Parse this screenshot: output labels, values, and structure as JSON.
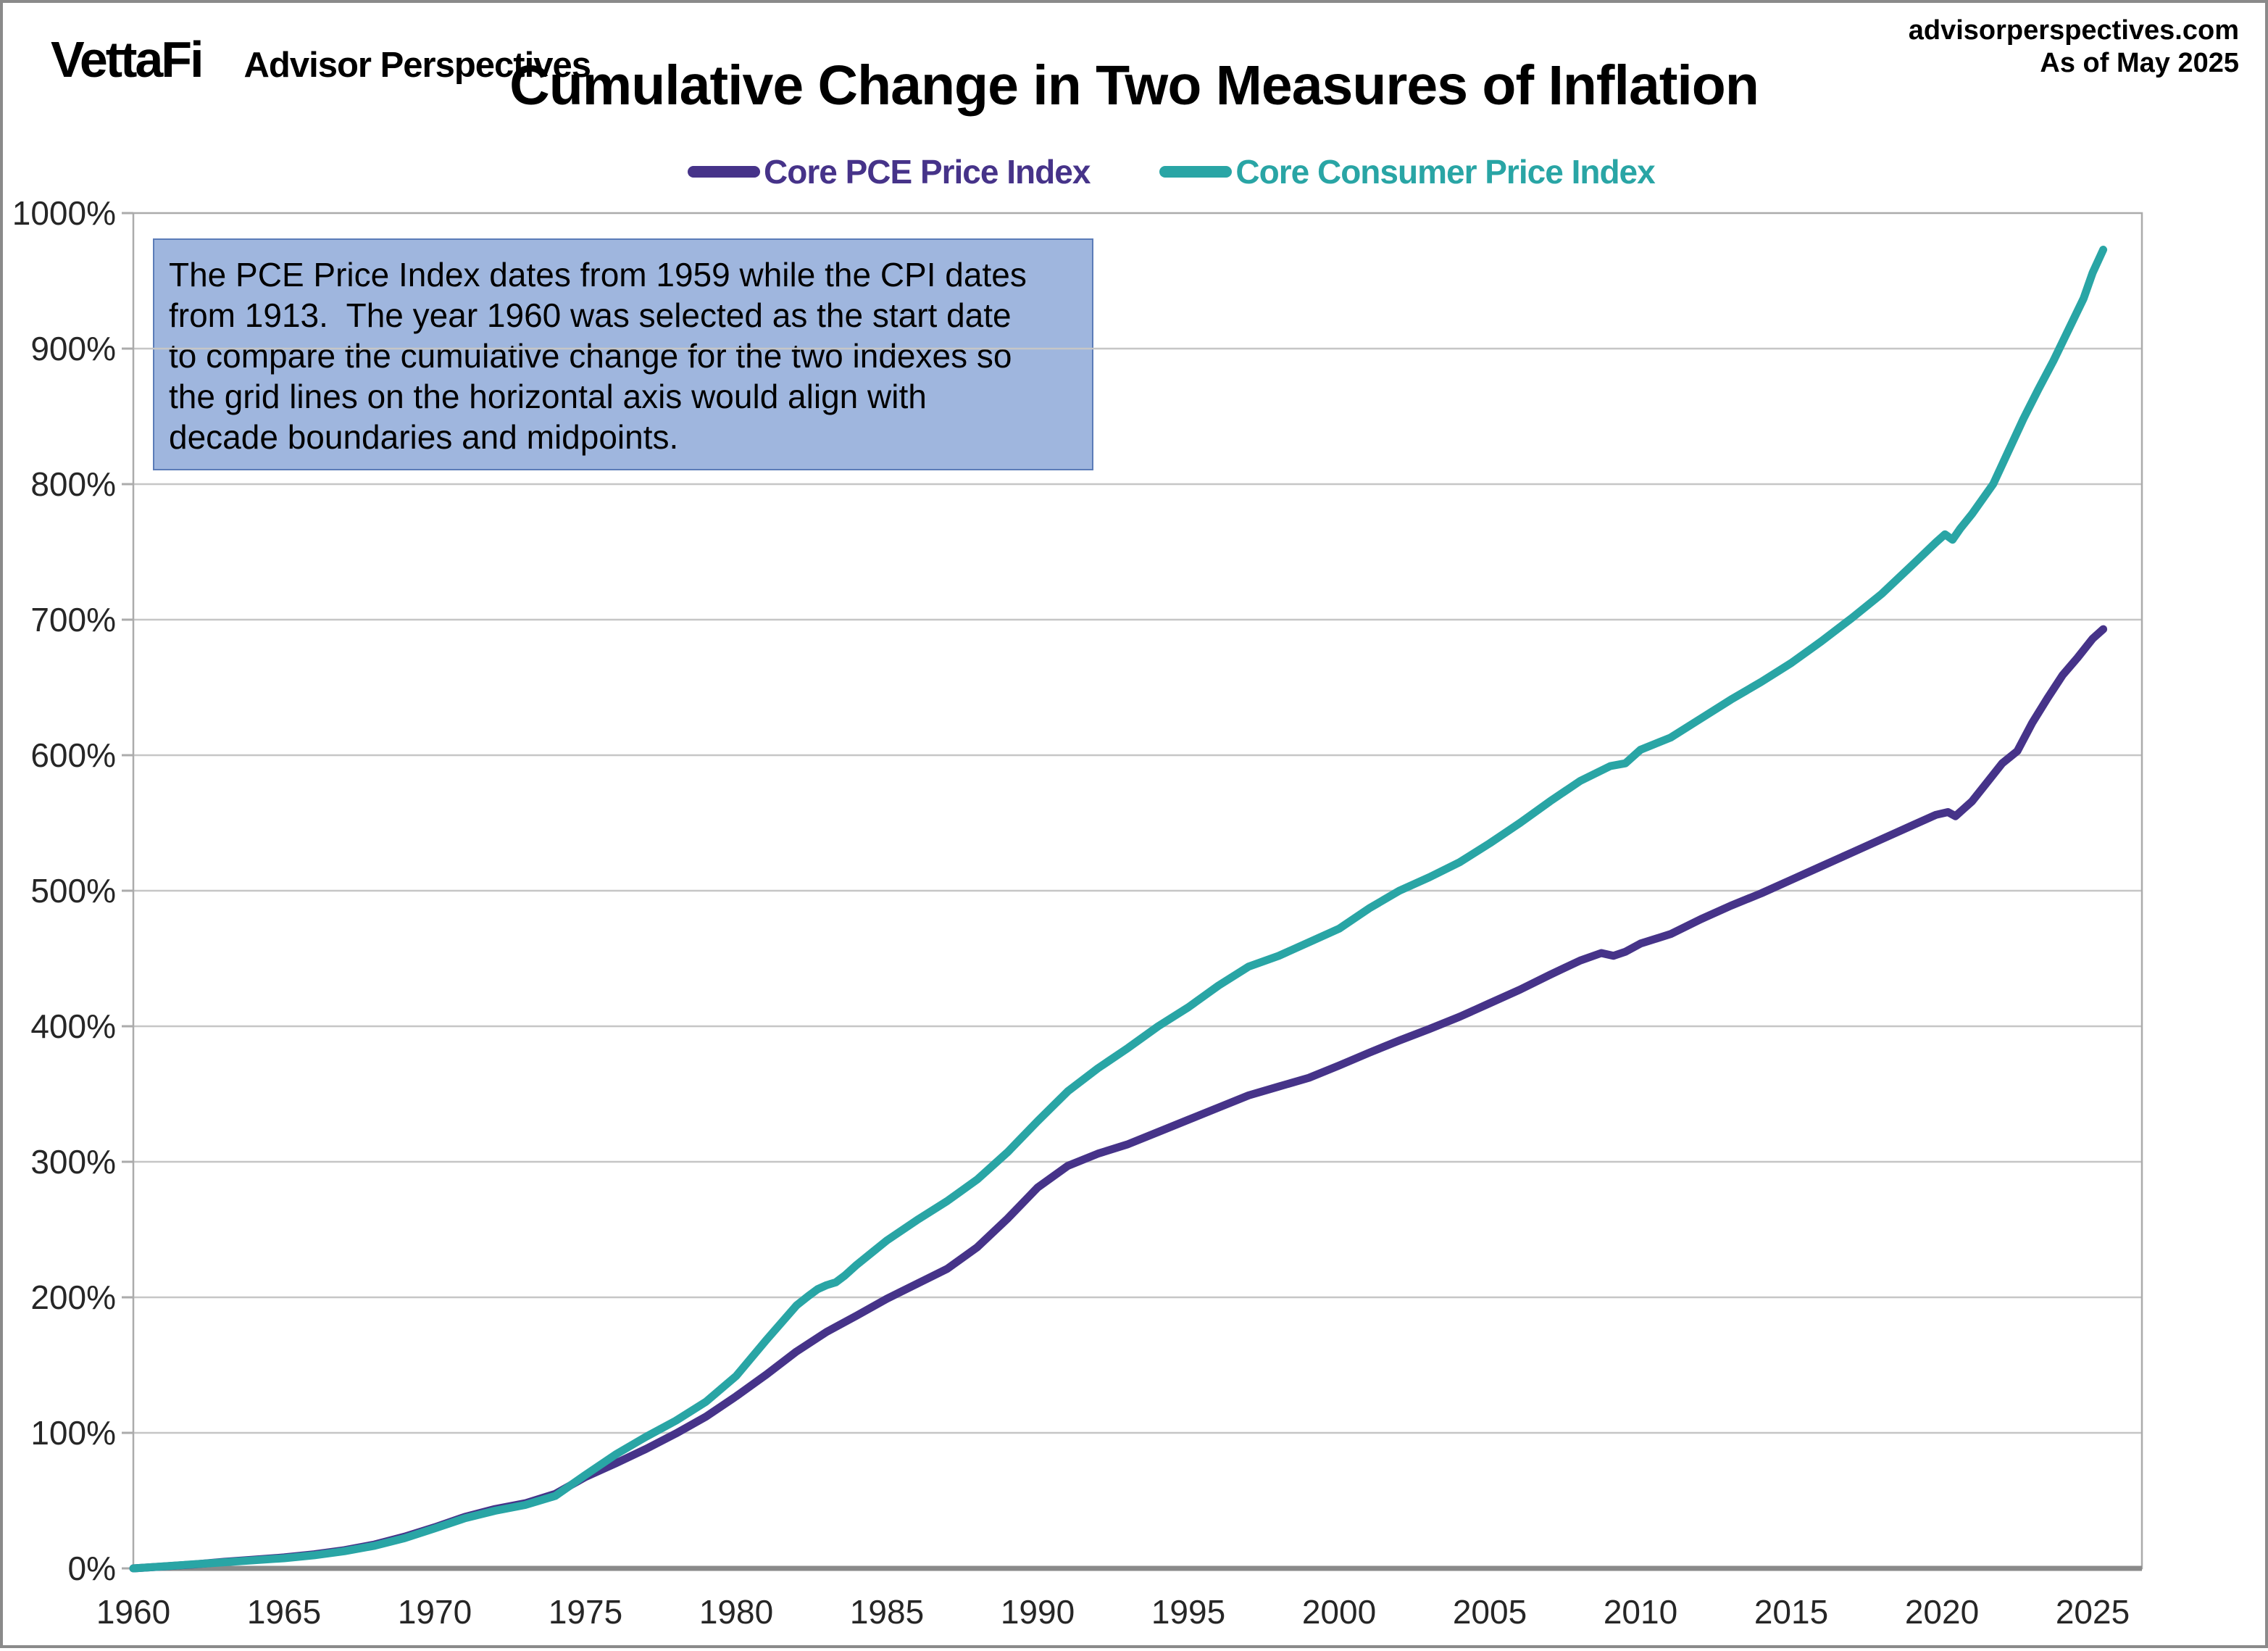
{
  "header": {
    "brand": "VettaFi",
    "brand_tagline": "Advisor Perspectives",
    "source_line1": "advisorperspectives.com",
    "source_line2": "As of May 2025"
  },
  "chart_data": {
    "type": "line",
    "title": "Cumulative Change in Two Measures of Inflation",
    "xlabel": "",
    "ylabel": "",
    "x_ticks": [
      1960,
      1965,
      1970,
      1975,
      1980,
      1985,
      1990,
      1995,
      2000,
      2005,
      2010,
      2015,
      2020,
      2025
    ],
    "y_ticks": [
      0,
      100,
      200,
      300,
      400,
      500,
      600,
      700,
      800,
      900,
      1000
    ],
    "y_tick_suffix": "%",
    "xlim": [
      1960,
      2026.6
    ],
    "ylim": [
      0,
      1000
    ],
    "grid": "horizontal",
    "legend_position": "top-center",
    "colors": {
      "grid": "#c6c6c6",
      "frame": "#ababab",
      "axis": "#8a8a8a",
      "tick_text": "#262626",
      "annotation_fill": "#9fb6de",
      "annotation_border": "#5b7cb8"
    },
    "annotation": {
      "text_lines": [
        "The PCE Price Index dates from 1959 while the CPI dates",
        "from 1913.  The year 1960 was selected as the start date",
        "to compare the cumulative change for the two indexes so",
        "the grid lines on the horizontal axis would align with",
        "decade boundaries and midpoints."
      ]
    },
    "series": [
      {
        "name": "Core PCE Price Index",
        "color": "#463389",
        "end_value_pct": 693,
        "points": [
          [
            1960,
            0
          ],
          [
            1961,
            1.4
          ],
          [
            1962,
            2.9
          ],
          [
            1963,
            4.8
          ],
          [
            1964,
            6.4
          ],
          [
            1965,
            8.1
          ],
          [
            1966,
            10.4
          ],
          [
            1967,
            13.4
          ],
          [
            1968,
            17.6
          ],
          [
            1969,
            23.4
          ],
          [
            1970,
            30.3
          ],
          [
            1971,
            38
          ],
          [
            1972,
            43.8
          ],
          [
            1973,
            48
          ],
          [
            1974,
            55
          ],
          [
            1975,
            67.5
          ],
          [
            1976,
            77.5
          ],
          [
            1977,
            88
          ],
          [
            1978,
            99.5
          ],
          [
            1979,
            112
          ],
          [
            1980,
            127
          ],
          [
            1981,
            143
          ],
          [
            1982,
            160
          ],
          [
            1983,
            174.5
          ],
          [
            1984,
            186.5
          ],
          [
            1985,
            199
          ],
          [
            1986,
            210
          ],
          [
            1987,
            221
          ],
          [
            1988,
            237
          ],
          [
            1989,
            258
          ],
          [
            1990,
            281
          ],
          [
            1991,
            297
          ],
          [
            1992,
            306
          ],
          [
            1993,
            313
          ],
          [
            1994,
            322
          ],
          [
            1995,
            331
          ],
          [
            1996,
            340
          ],
          [
            1997,
            349
          ],
          [
            1998,
            355.5
          ],
          [
            1999,
            362
          ],
          [
            2000,
            371
          ],
          [
            2001,
            380.5
          ],
          [
            2002,
            389.5
          ],
          [
            2003,
            398
          ],
          [
            2004,
            407
          ],
          [
            2005,
            417
          ],
          [
            2006,
            427
          ],
          [
            2007,
            438
          ],
          [
            2008,
            448.5
          ],
          [
            2008.7,
            454
          ],
          [
            2009.1,
            452
          ],
          [
            2009.5,
            455
          ],
          [
            2010,
            461
          ],
          [
            2011,
            468
          ],
          [
            2012,
            479
          ],
          [
            2013,
            489
          ],
          [
            2014,
            498
          ],
          [
            2015,
            508
          ],
          [
            2016,
            518
          ],
          [
            2017,
            528
          ],
          [
            2018,
            538
          ],
          [
            2019,
            548
          ],
          [
            2019.8,
            556
          ],
          [
            2020.2,
            558
          ],
          [
            2020.45,
            555
          ],
          [
            2020.7,
            560
          ],
          [
            2021,
            566
          ],
          [
            2021.5,
            580
          ],
          [
            2022,
            594
          ],
          [
            2022.5,
            603
          ],
          [
            2023,
            624
          ],
          [
            2023.5,
            642
          ],
          [
            2024,
            659
          ],
          [
            2024.5,
            672
          ],
          [
            2025,
            686
          ],
          [
            2025.35,
            693
          ]
        ]
      },
      {
        "name": "Core Consumer Price Index",
        "color": "#29a5a5",
        "end_value_pct": 973,
        "points": [
          [
            1960,
            0
          ],
          [
            1961,
            1.5
          ],
          [
            1962,
            3
          ],
          [
            1963,
            4.5
          ],
          [
            1964,
            6
          ],
          [
            1965,
            7.5
          ],
          [
            1966,
            9.7
          ],
          [
            1967,
            12.7
          ],
          [
            1968,
            16.7
          ],
          [
            1969,
            22.3
          ],
          [
            1970,
            29.5
          ],
          [
            1971,
            37
          ],
          [
            1972,
            42.5
          ],
          [
            1973,
            46.8
          ],
          [
            1974,
            53.5
          ],
          [
            1975,
            69
          ],
          [
            1976,
            84
          ],
          [
            1977,
            97
          ],
          [
            1978,
            109
          ],
          [
            1979,
            123
          ],
          [
            1980,
            142
          ],
          [
            1981,
            168.5
          ],
          [
            1982,
            194
          ],
          [
            1982.4,
            201
          ],
          [
            1982.7,
            206
          ],
          [
            1983,
            209
          ],
          [
            1983.3,
            211
          ],
          [
            1983.6,
            216
          ],
          [
            1984,
            224
          ],
          [
            1984.5,
            233
          ],
          [
            1985,
            242
          ],
          [
            1986,
            257
          ],
          [
            1987,
            271
          ],
          [
            1988,
            287
          ],
          [
            1989,
            307
          ],
          [
            1990,
            330
          ],
          [
            1991,
            352
          ],
          [
            1992,
            369
          ],
          [
            1993,
            384
          ],
          [
            1994,
            400
          ],
          [
            1995,
            414
          ],
          [
            1996,
            430
          ],
          [
            1997,
            444
          ],
          [
            1998,
            452
          ],
          [
            1999,
            462
          ],
          [
            2000,
            472
          ],
          [
            2001,
            487
          ],
          [
            2002,
            500
          ],
          [
            2003,
            510
          ],
          [
            2004,
            521
          ],
          [
            2005,
            535
          ],
          [
            2006,
            550
          ],
          [
            2007,
            566
          ],
          [
            2008,
            581
          ],
          [
            2009,
            592
          ],
          [
            2009.5,
            594
          ],
          [
            2010,
            604
          ],
          [
            2011,
            613
          ],
          [
            2012,
            627
          ],
          [
            2013,
            641
          ],
          [
            2014,
            654
          ],
          [
            2015,
            668
          ],
          [
            2016,
            684
          ],
          [
            2017,
            701
          ],
          [
            2018,
            719
          ],
          [
            2019,
            740
          ],
          [
            2019.8,
            757
          ],
          [
            2020.1,
            763
          ],
          [
            2020.35,
            759
          ],
          [
            2020.6,
            767
          ],
          [
            2021,
            778
          ],
          [
            2021.7,
            800
          ],
          [
            2022.2,
            824
          ],
          [
            2022.7,
            848
          ],
          [
            2023.2,
            870
          ],
          [
            2023.7,
            891
          ],
          [
            2024.2,
            914
          ],
          [
            2024.7,
            937
          ],
          [
            2025,
            956
          ],
          [
            2025.35,
            973
          ]
        ]
      }
    ]
  }
}
